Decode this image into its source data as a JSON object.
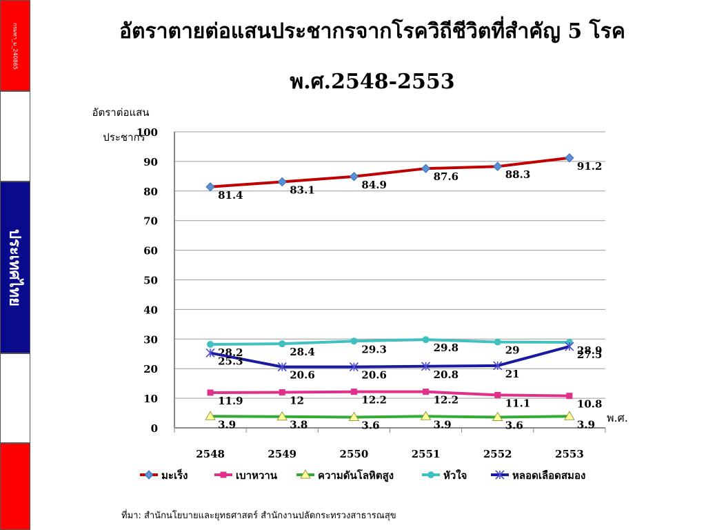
{
  "sidebar": {
    "code": "กรมทา_ม_240865",
    "country": "ประเทศไทย"
  },
  "title_line1": "อัตราตายต่อแสนประชากรจากโรควิถีชีวิตที่สำคัญ 5 โรค",
  "title_line2": "พ.ศ.2548-2553",
  "source": "ที่มา: สำนักนโยบายและยุทธศาสตร์ สำนักงานปลัดกระทรวงสาธารณสุข",
  "chart_data": {
    "type": "line",
    "ylabel": "อัตราต่อแสน ประชากร",
    "xlabel": "พ.ศ.",
    "ylim": [
      0,
      100
    ],
    "yticks": [
      0,
      10,
      20,
      30,
      40,
      50,
      60,
      70,
      80,
      90,
      100
    ],
    "categories": [
      "2548",
      "2549",
      "2550",
      "2551",
      "2552",
      "2553"
    ],
    "grid": true,
    "legend_position": "bottom",
    "series": [
      {
        "name": "มะเร็ง",
        "color": "#c00000",
        "marker": "diamond",
        "marker_color": "#5b8fd6",
        "values": [
          81.4,
          83.1,
          84.9,
          87.6,
          88.3,
          91.2
        ],
        "labels": [
          "81.4",
          "83.1",
          "84.9",
          "87.6",
          "88.3",
          "91.2"
        ]
      },
      {
        "name": "เบาหวาน",
        "color": "#e0308a",
        "marker": "square",
        "marker_color": "#e0308a",
        "values": [
          11.9,
          12,
          12.2,
          12.2,
          11.1,
          10.8
        ],
        "labels": [
          "11.9",
          "12",
          "12.2",
          "12.2",
          "11.1",
          "10.8"
        ]
      },
      {
        "name": "ความดันโลหิตสูง",
        "color": "#33aa33",
        "marker": "triangle",
        "marker_color": "#ffff99",
        "values": [
          3.9,
          3.8,
          3.6,
          3.9,
          3.6,
          3.9
        ],
        "labels": [
          "3.9",
          "3.8",
          "3.6",
          "3.9",
          "3.6",
          "3.9"
        ]
      },
      {
        "name": "หัวใจ",
        "color": "#40c0c0",
        "marker": "circle",
        "marker_color": "#40c0c0",
        "values": [
          28.2,
          28.4,
          29.3,
          29.8,
          29,
          28.9
        ],
        "labels": [
          "28.2",
          "28.4",
          "29.3",
          "29.8",
          "29",
          "28.9"
        ]
      },
      {
        "name": "หลอดเลือดสมอง",
        "color": "#1a1aa0",
        "marker": "star",
        "marker_color": "#4a4ad0",
        "values": [
          25.3,
          20.6,
          20.6,
          20.8,
          21,
          27.5
        ],
        "labels": [
          "25.3",
          "20.6",
          "20.6",
          "20.8",
          "21",
          "27.5"
        ]
      }
    ]
  }
}
